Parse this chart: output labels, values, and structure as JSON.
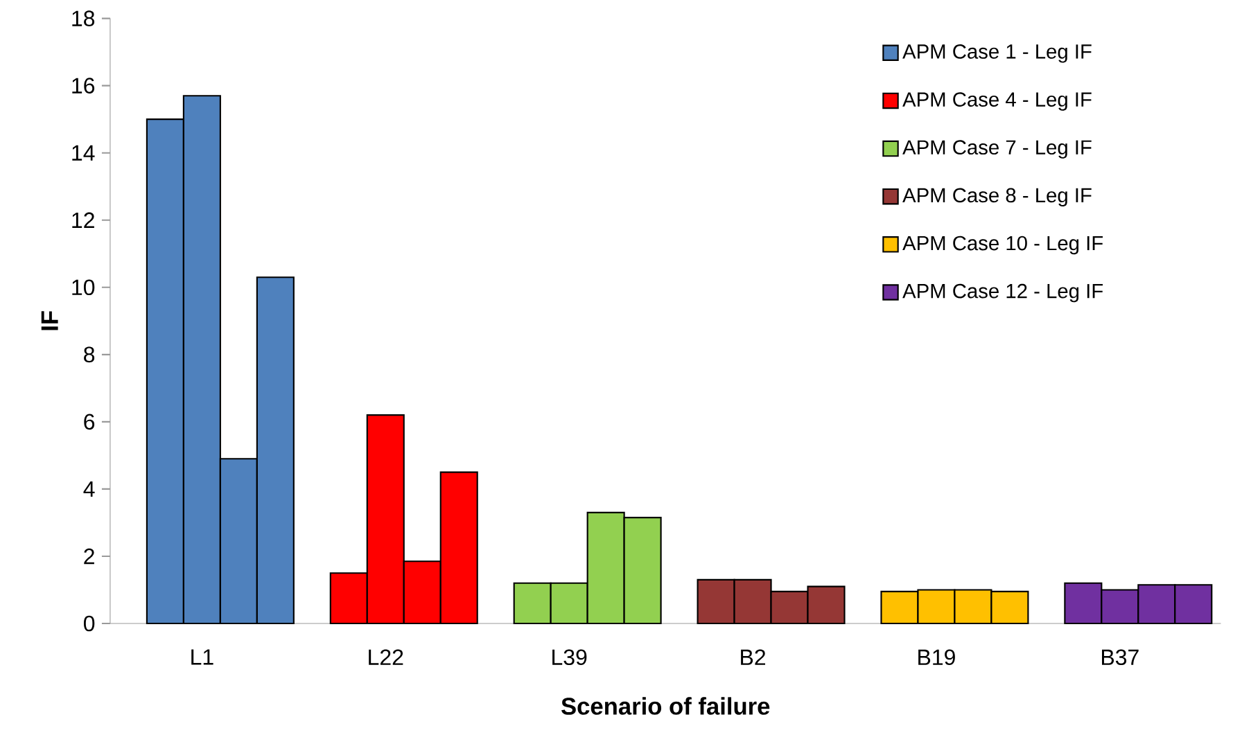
{
  "chart_data": {
    "type": "bar",
    "xlabel": "Scenario of failure",
    "ylabel": "IF",
    "ylim": [
      0,
      18
    ],
    "yticks": [
      0,
      2,
      4,
      6,
      8,
      10,
      12,
      14,
      16,
      18
    ],
    "categories": [
      null,
      null,
      "L1",
      null,
      null,
      null,
      null,
      "L22",
      null,
      null,
      null,
      null,
      "L39",
      null,
      null,
      null,
      null,
      "B2",
      null,
      null,
      null,
      null,
      "B19",
      null,
      null,
      null,
      null,
      "B37",
      null,
      null
    ],
    "legend": "top right",
    "series": [
      {
        "name": "APM Case 1 - Leg IF",
        "color": "#4f81bd",
        "values": [
          null,
          15.0,
          15.7,
          4.9,
          10.3,
          null,
          null,
          null,
          null,
          null,
          null,
          null,
          null,
          null,
          null,
          null,
          null,
          null,
          null,
          null,
          null,
          null,
          null,
          null,
          null,
          null,
          null,
          null,
          null,
          null
        ]
      },
      {
        "name": "APM Case 4 - Leg IF",
        "color": "#ff0000",
        "values": [
          null,
          null,
          null,
          null,
          null,
          null,
          1.5,
          6.2,
          1.85,
          4.5,
          null,
          null,
          null,
          null,
          null,
          null,
          null,
          null,
          null,
          null,
          null,
          null,
          null,
          null,
          null,
          null,
          null,
          null,
          null,
          null
        ]
      },
      {
        "name": "APM Case 7 - Leg IF",
        "color": "#92d050",
        "values": [
          null,
          null,
          null,
          null,
          null,
          null,
          null,
          null,
          null,
          null,
          null,
          1.2,
          1.2,
          3.3,
          3.15,
          null,
          null,
          null,
          null,
          null,
          null,
          null,
          null,
          null,
          null,
          null,
          null,
          null,
          null,
          null
        ]
      },
      {
        "name": "APM Case 8 - Leg IF",
        "color": "#953735",
        "values": [
          null,
          null,
          null,
          null,
          null,
          null,
          null,
          null,
          null,
          null,
          null,
          null,
          null,
          null,
          null,
          null,
          1.3,
          1.3,
          0.95,
          1.1,
          null,
          null,
          null,
          null,
          null,
          null,
          null,
          null,
          null,
          null
        ]
      },
      {
        "name": "APM Case 10 - Leg IF",
        "color": "#ffc000",
        "values": [
          null,
          null,
          null,
          null,
          null,
          null,
          null,
          null,
          null,
          null,
          null,
          null,
          null,
          null,
          null,
          null,
          null,
          null,
          null,
          null,
          null,
          0.95,
          1.0,
          1.0,
          0.95,
          null,
          null,
          null,
          null,
          null
        ]
      },
      {
        "name": "APM Case 12 - Leg IF",
        "color": "#7030a0",
        "values": [
          null,
          null,
          null,
          null,
          null,
          null,
          null,
          null,
          null,
          null,
          null,
          null,
          null,
          null,
          null,
          null,
          null,
          null,
          null,
          null,
          null,
          null,
          null,
          null,
          null,
          null,
          1.2,
          1.0,
          1.15,
          1.15
        ]
      }
    ]
  }
}
